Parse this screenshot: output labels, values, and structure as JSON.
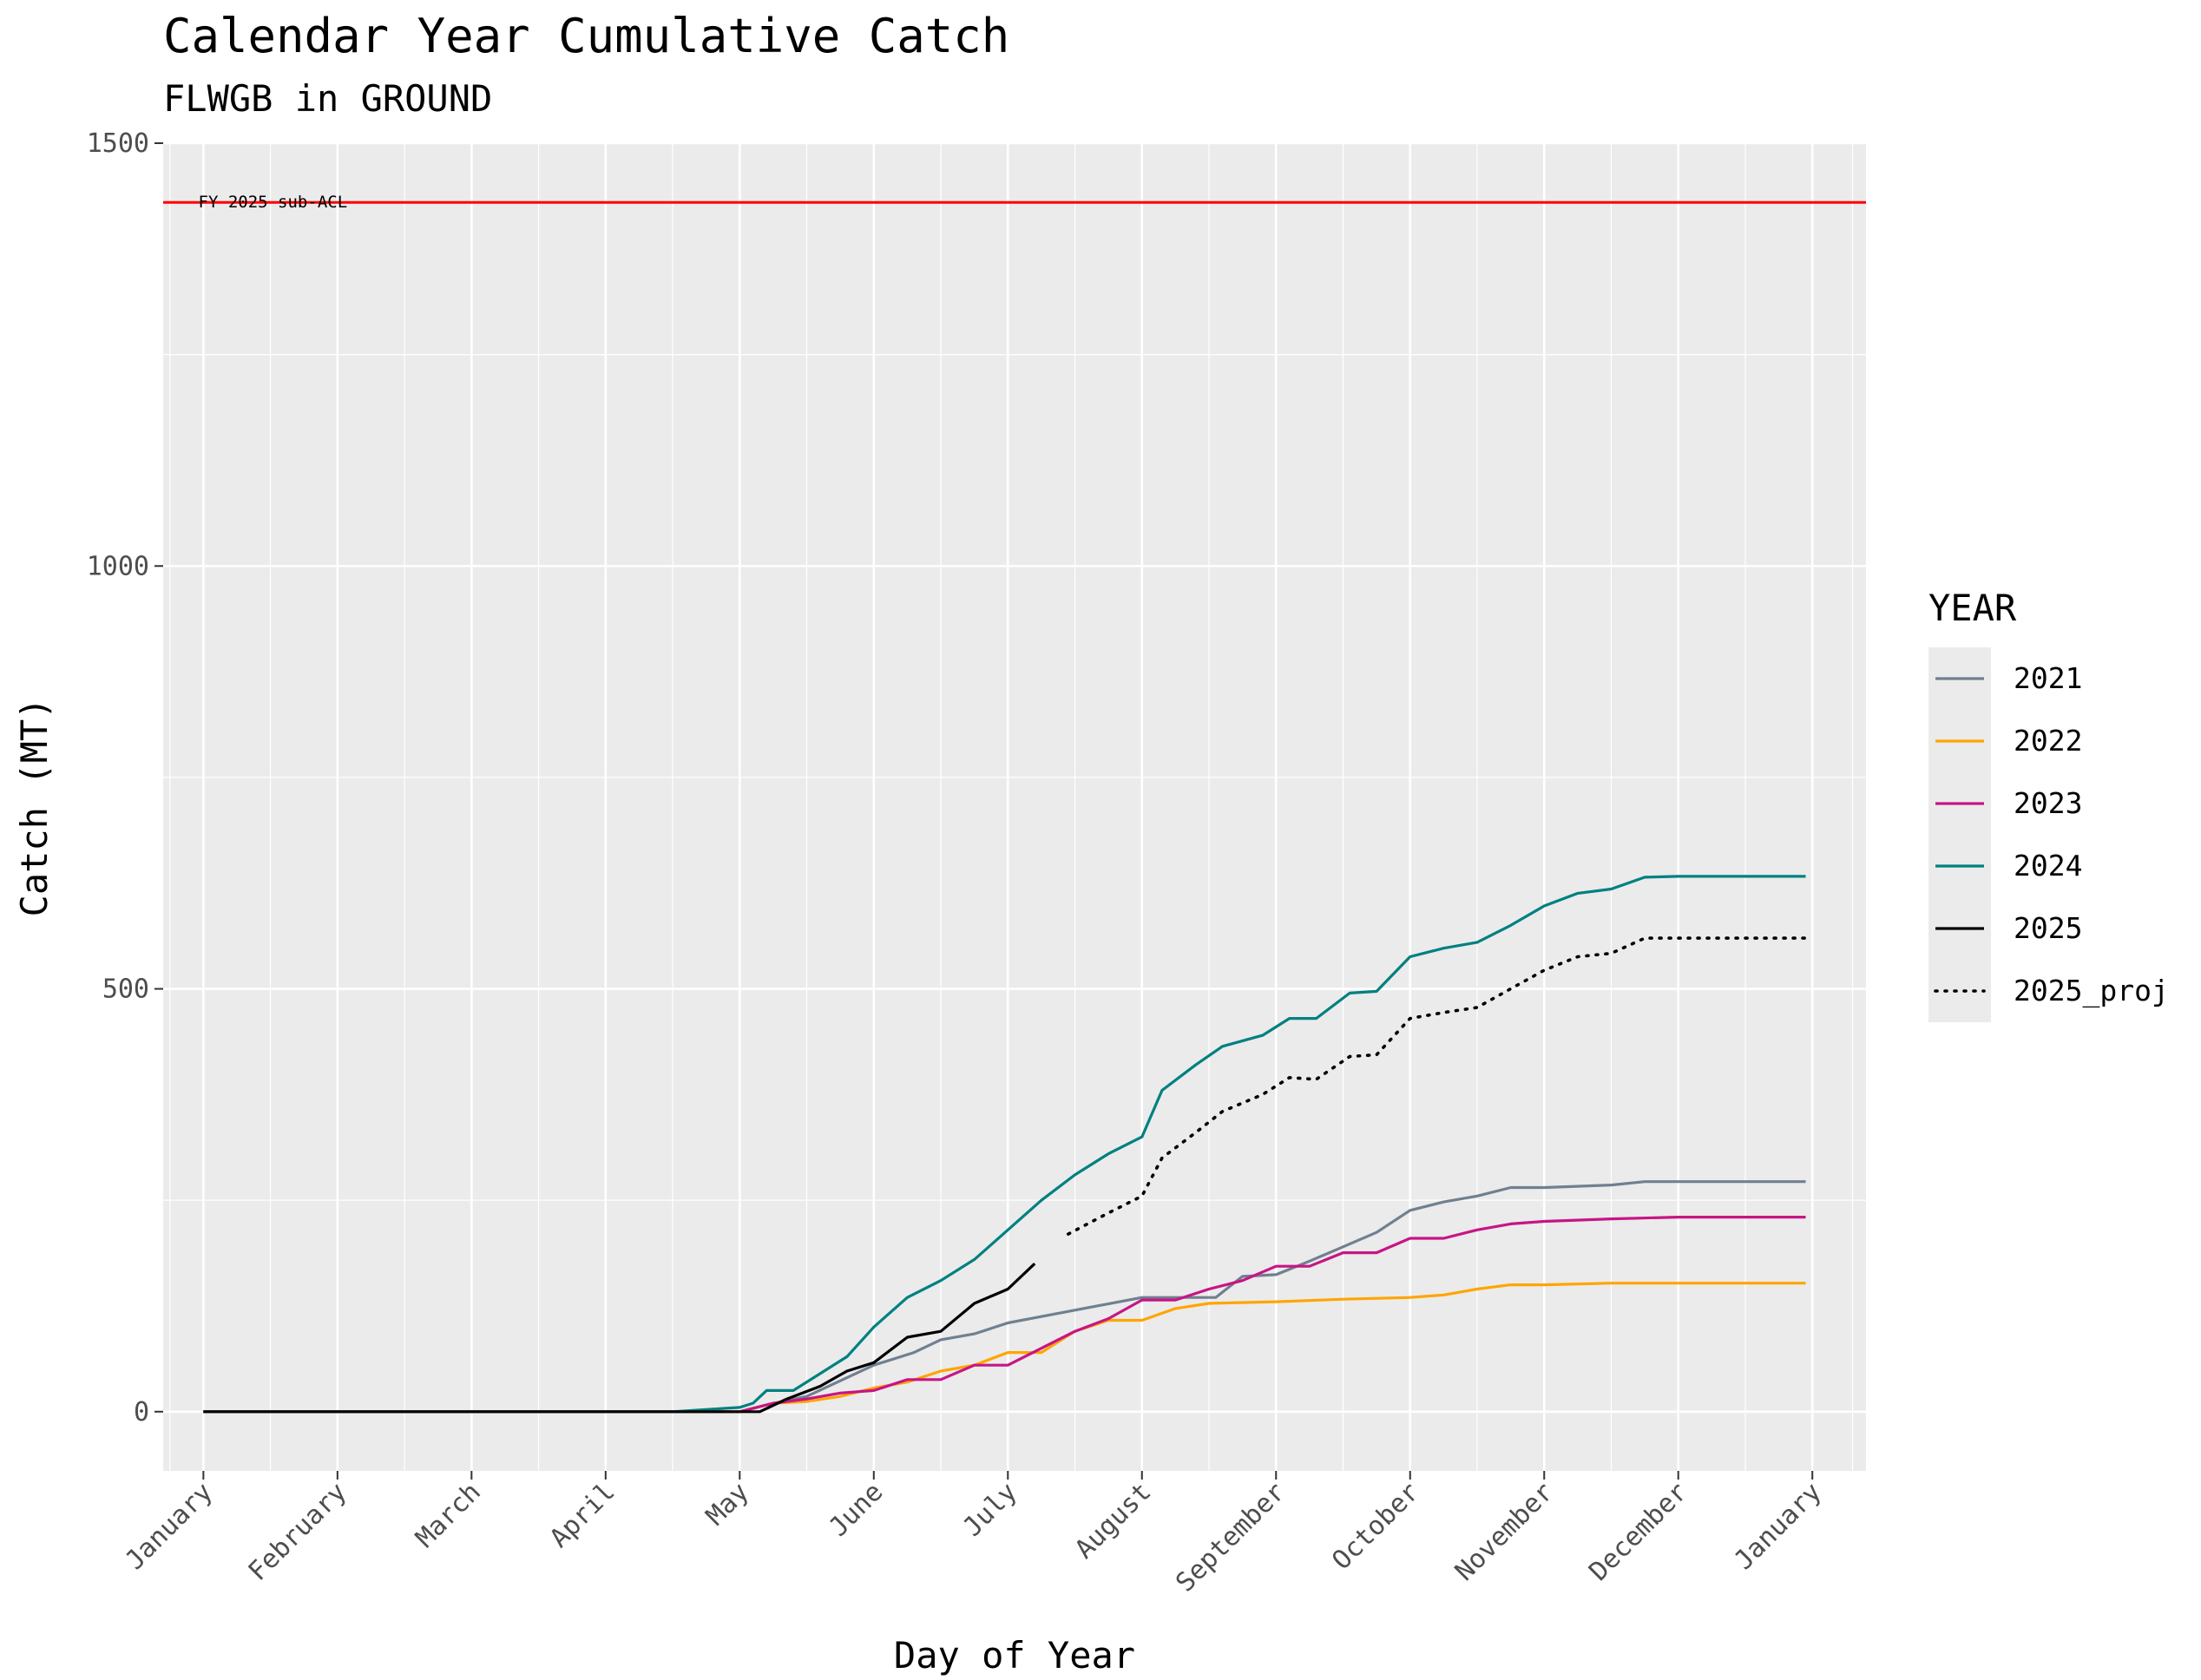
{
  "chart_data": {
    "type": "line",
    "title": "Calendar Year Cumulative Catch",
    "subtitle": "FLWGB in GROUND",
    "xlabel": "Day of Year",
    "ylabel": "Catch (MT)",
    "x_unit": "month",
    "xlim": [
      0.7,
      13.4
    ],
    "ylim": [
      -70,
      1500
    ],
    "x_ticks": [
      {
        "label": "January",
        "value": 1
      },
      {
        "label": "February",
        "value": 2
      },
      {
        "label": "March",
        "value": 3
      },
      {
        "label": "April",
        "value": 4
      },
      {
        "label": "May",
        "value": 5
      },
      {
        "label": "June",
        "value": 6
      },
      {
        "label": "July",
        "value": 7
      },
      {
        "label": "August",
        "value": 8
      },
      {
        "label": "September",
        "value": 9
      },
      {
        "label": "October",
        "value": 10
      },
      {
        "label": "November",
        "value": 11
      },
      {
        "label": "December",
        "value": 12
      },
      {
        "label": "January",
        "value": 13
      }
    ],
    "y_ticks": [
      {
        "label": "0",
        "value": 0
      },
      {
        "label": "500",
        "value": 500
      },
      {
        "label": "1000",
        "value": 1000
      },
      {
        "label": "1500",
        "value": 1500
      }
    ],
    "grid": true,
    "hline": {
      "value": 1430,
      "color": "#ff0000",
      "label": "FY 2025 sub-ACL"
    },
    "legend": {
      "title": "YEAR",
      "position": "right"
    },
    "series": [
      {
        "name": "2021",
        "color": "#708090",
        "style": "solid",
        "points": [
          [
            1,
            0
          ],
          [
            5,
            0
          ],
          [
            5.2,
            8
          ],
          [
            5.5,
            18
          ],
          [
            6,
            55
          ],
          [
            6.3,
            70
          ],
          [
            6.5,
            85
          ],
          [
            6.75,
            92
          ],
          [
            7,
            105
          ],
          [
            7.5,
            120
          ],
          [
            8,
            135
          ],
          [
            8.25,
            135
          ],
          [
            8.55,
            135
          ],
          [
            8.75,
            160
          ],
          [
            9,
            162
          ],
          [
            9.25,
            178
          ],
          [
            9.5,
            195
          ],
          [
            9.75,
            212
          ],
          [
            10,
            238
          ],
          [
            10.25,
            248
          ],
          [
            10.5,
            255
          ],
          [
            10.75,
            265
          ],
          [
            11,
            265
          ],
          [
            11.5,
            268
          ],
          [
            11.75,
            272
          ],
          [
            12,
            272
          ],
          [
            12.5,
            272
          ],
          [
            12.95,
            272
          ]
        ]
      },
      {
        "name": "2022",
        "color": "#ffa500",
        "style": "solid",
        "points": [
          [
            1,
            0
          ],
          [
            5,
            0
          ],
          [
            5.25,
            10
          ],
          [
            5.5,
            12
          ],
          [
            5.75,
            18
          ],
          [
            6,
            28
          ],
          [
            6.25,
            35
          ],
          [
            6.5,
            48
          ],
          [
            6.75,
            55
          ],
          [
            7,
            70
          ],
          [
            7.25,
            70
          ],
          [
            7.5,
            95
          ],
          [
            7.75,
            108
          ],
          [
            8,
            108
          ],
          [
            8.25,
            122
          ],
          [
            8.5,
            128
          ],
          [
            9,
            130
          ],
          [
            9.5,
            133
          ],
          [
            10,
            135
          ],
          [
            10.25,
            138
          ],
          [
            10.5,
            145
          ],
          [
            10.75,
            150
          ],
          [
            11,
            150
          ],
          [
            11.5,
            152
          ],
          [
            12,
            152
          ],
          [
            12.5,
            152
          ],
          [
            12.95,
            152
          ]
        ]
      },
      {
        "name": "2023",
        "color": "#c71585",
        "style": "solid",
        "points": [
          [
            1,
            0
          ],
          [
            5,
            0
          ],
          [
            5.25,
            10
          ],
          [
            5.5,
            15
          ],
          [
            5.75,
            22
          ],
          [
            6,
            25
          ],
          [
            6.25,
            38
          ],
          [
            6.5,
            38
          ],
          [
            6.75,
            55
          ],
          [
            7,
            55
          ],
          [
            7.25,
            75
          ],
          [
            7.5,
            95
          ],
          [
            7.75,
            110
          ],
          [
            8,
            132
          ],
          [
            8.25,
            132
          ],
          [
            8.5,
            145
          ],
          [
            8.75,
            155
          ],
          [
            9,
            172
          ],
          [
            9.25,
            172
          ],
          [
            9.5,
            188
          ],
          [
            9.75,
            188
          ],
          [
            10,
            205
          ],
          [
            10.25,
            205
          ],
          [
            10.5,
            215
          ],
          [
            10.75,
            222
          ],
          [
            11,
            225
          ],
          [
            11.5,
            228
          ],
          [
            12,
            230
          ],
          [
            12.5,
            230
          ],
          [
            12.95,
            230
          ]
        ]
      },
      {
        "name": "2024",
        "color": "#008080",
        "style": "solid",
        "points": [
          [
            1,
            0
          ],
          [
            4.5,
            0
          ],
          [
            5,
            5
          ],
          [
            5.1,
            10
          ],
          [
            5.2,
            25
          ],
          [
            5.4,
            25
          ],
          [
            5.6,
            45
          ],
          [
            5.8,
            65
          ],
          [
            6,
            100
          ],
          [
            6.25,
            135
          ],
          [
            6.5,
            155
          ],
          [
            6.75,
            180
          ],
          [
            7,
            215
          ],
          [
            7.25,
            250
          ],
          [
            7.5,
            280
          ],
          [
            7.75,
            305
          ],
          [
            8,
            325
          ],
          [
            8.15,
            380
          ],
          [
            8.4,
            410
          ],
          [
            8.6,
            432
          ],
          [
            8.9,
            445
          ],
          [
            9.1,
            465
          ],
          [
            9.3,
            465
          ],
          [
            9.55,
            495
          ],
          [
            9.75,
            497
          ],
          [
            10,
            538
          ],
          [
            10.25,
            548
          ],
          [
            10.5,
            555
          ],
          [
            10.75,
            575
          ],
          [
            11,
            598
          ],
          [
            11.25,
            613
          ],
          [
            11.5,
            618
          ],
          [
            11.75,
            632
          ],
          [
            12,
            633
          ],
          [
            12.5,
            633
          ],
          [
            12.95,
            633
          ]
        ]
      },
      {
        "name": "2025",
        "color": "#000000",
        "style": "solid",
        "points": [
          [
            1,
            0
          ],
          [
            5.15,
            0
          ],
          [
            5.35,
            15
          ],
          [
            5.6,
            30
          ],
          [
            5.8,
            48
          ],
          [
            6,
            58
          ],
          [
            6.25,
            88
          ],
          [
            6.5,
            95
          ],
          [
            6.75,
            128
          ],
          [
            7,
            145
          ],
          [
            7.2,
            175
          ]
        ]
      },
      {
        "name": "2025_proj",
        "color": "#000000",
        "style": "dotted",
        "points": [
          [
            7.45,
            210
          ],
          [
            7.75,
            235
          ],
          [
            8,
            255
          ],
          [
            8.15,
            300
          ],
          [
            8.4,
            330
          ],
          [
            8.6,
            355
          ],
          [
            8.9,
            375
          ],
          [
            9.1,
            395
          ],
          [
            9.3,
            393
          ],
          [
            9.55,
            420
          ],
          [
            9.75,
            422
          ],
          [
            10,
            465
          ],
          [
            10.25,
            472
          ],
          [
            10.5,
            478
          ],
          [
            10.75,
            500
          ],
          [
            11,
            522
          ],
          [
            11.25,
            538
          ],
          [
            11.5,
            542
          ],
          [
            11.75,
            560
          ],
          [
            12,
            560
          ],
          [
            12.5,
            560
          ],
          [
            12.95,
            560
          ]
        ]
      }
    ]
  }
}
